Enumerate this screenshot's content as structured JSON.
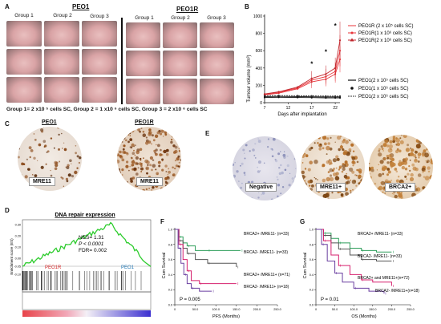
{
  "panelA": {
    "label": "A",
    "peo1_title": "PEO1",
    "peo1r_title": "PEO1R",
    "groups": [
      "Group 1",
      "Group 2",
      "Group 3"
    ],
    "caption": "Group 1= 2 x10 ⁵ cells SC, Group 2 = 1 x10 ⁶ cells SC, Group 3 = 2 x10 ⁶ cells SC"
  },
  "panelB": {
    "label": "B",
    "ylabel": "Tumour volume (mm³)",
    "xlabel": "Days after implantation",
    "legend": [
      "PEO1R (2 x 10⁵ cells SC)",
      "PEO1R(1 x 10⁶ cells SC)",
      "PEO1R(2 x 10⁶ cells SC)",
      "PEO1(2 x 10⁵ cells SC)",
      "PEO1(1 x 10⁶ cells SC)",
      "PEO1(2 x 10⁶ cells SC)"
    ],
    "sig_mark": "*"
  },
  "panelC": {
    "label": "C",
    "peo1_title": "PEO1",
    "peo1r_title": "PEO1R",
    "stain1": "MRE11",
    "stain2": "MRE11"
  },
  "panelD": {
    "label": "D",
    "title": "DNA repair expression",
    "ylabel": "Enrichment score (ES)",
    "nes": "NES= 1.31",
    "p": "P < 0.0001",
    "fdr": "FDR= 0.002",
    "left_tag": "PEO1R",
    "right_tag": "PEO1"
  },
  "panelE": {
    "label": "E",
    "neg": "Negative",
    "mre": "MRE11+",
    "brca": "BRCA2+"
  },
  "panelF": {
    "label": "F",
    "ylabel": "Cum Survival",
    "xlabel": "PFS (Months)",
    "p": "P = 0.005",
    "groups": [
      "BRCA2+ /MRE11- (n=33)",
      "BRCA2- /MRE11- (n=33)",
      "BRCA2+ /MRE11+ (n=71)",
      "BRCA2- /MRE11+ (n=18)"
    ]
  },
  "panelG": {
    "label": "G",
    "ylabel": "Cum Survival",
    "xlabel": "OS (Months)",
    "p": "P = 0.01",
    "groups": [
      "BRCA2+ /MRE11- (n=33)",
      "BRCA2- /MRE11- (n=33)",
      "BRCA2+ and MRE11+(n=72)",
      "BRCA2- /MRE11+(n=18)"
    ]
  },
  "chart_data": [
    {
      "type": "line",
      "panel": "B",
      "ylabel": "Tumour volume (mm³)",
      "xlabel": "Days after implantation",
      "x": [
        7,
        10,
        14,
        17,
        20,
        22,
        23
      ],
      "ylim": [
        0,
        1000
      ],
      "yticks": [
        0,
        200,
        400,
        600,
        800,
        1000
      ],
      "xticks": [
        7,
        12,
        17,
        22
      ],
      "series": [
        {
          "name": "PEO1R (2 x 10⁵ cells SC)",
          "color": "#e8343a",
          "values": [
            90,
            110,
            160,
            240,
            270,
            330,
            500
          ]
        },
        {
          "name": "PEO1R(1 x 10⁶ cells SC)",
          "color": "#e8343a",
          "values": [
            95,
            120,
            170,
            260,
            300,
            360,
            600
          ]
        },
        {
          "name": "PEO1R(2 x 10⁶ cells SC)",
          "color": "#c0272d",
          "values": [
            100,
            125,
            180,
            280,
            330,
            400,
            720
          ]
        },
        {
          "name": "PEO1(2 x 10⁵ cells SC)",
          "color": "#111111",
          "values": [
            60,
            62,
            60,
            58,
            55,
            55,
            55
          ]
        },
        {
          "name": "PEO1(1 x 10⁶ cells SC)",
          "color": "#111111",
          "values": [
            70,
            72,
            70,
            68,
            66,
            66,
            66
          ]
        },
        {
          "name": "PEO1(2 x 10⁶ cells SC)",
          "color": "#333333",
          "values": [
            80,
            82,
            80,
            78,
            76,
            75,
            75
          ]
        }
      ],
      "significance_x": [
        17,
        20,
        22
      ]
    },
    {
      "type": "line",
      "panel": "F",
      "ylabel": "Cum Survival",
      "xlabel": "PFS (Months)",
      "xlim": [
        0,
        250
      ],
      "ylim": [
        0,
        1
      ],
      "xticks": [
        0,
        50,
        100,
        150,
        200,
        250
      ],
      "yticks": [
        0,
        0.2,
        0.4,
        0.6,
        0.8,
        1.0
      ],
      "series": [
        {
          "name": "BRCA2+ /MRE11- (n=33)",
          "color": "#2e9e5b",
          "x": [
            0,
            10,
            20,
            30,
            50,
            80,
            130,
            160
          ],
          "values": [
            1.0,
            0.9,
            0.82,
            0.78,
            0.72,
            0.72,
            0.72,
            0.72
          ]
        },
        {
          "name": "BRCA2- /MRE11- (n=33)",
          "color": "#555555",
          "x": [
            0,
            10,
            20,
            30,
            50,
            80,
            110,
            150
          ],
          "values": [
            1.0,
            0.85,
            0.75,
            0.68,
            0.6,
            0.55,
            0.55,
            0.5
          ]
        },
        {
          "name": "BRCA2+ /MRE11+ (n=71)",
          "color": "#d6206e",
          "x": [
            0,
            10,
            20,
            30,
            40,
            60,
            100,
            150
          ],
          "values": [
            1.0,
            0.8,
            0.6,
            0.45,
            0.32,
            0.28,
            0.28,
            0.28
          ]
        },
        {
          "name": "BRCA2- /MRE11+ (n=18)",
          "color": "#6a3fa0",
          "x": [
            0,
            8,
            15,
            22,
            30,
            40,
            60,
            90
          ],
          "values": [
            1.0,
            0.75,
            0.55,
            0.4,
            0.28,
            0.22,
            0.18,
            0.18
          ]
        }
      ]
    },
    {
      "type": "line",
      "panel": "G",
      "ylabel": "Cum Survival",
      "xlabel": "OS (Months)",
      "xlim": [
        0,
        250
      ],
      "ylim": [
        0,
        1
      ],
      "xticks": [
        0,
        50,
        100,
        150,
        200,
        250
      ],
      "yticks": [
        0,
        0.2,
        0.4,
        0.6,
        0.8,
        1.0
      ],
      "series": [
        {
          "name": "BRCA2+ /MRE11- (n=33)",
          "color": "#2e9e5b",
          "x": [
            0,
            20,
            40,
            60,
            90,
            120,
            160,
            200
          ],
          "values": [
            1.0,
            0.95,
            0.88,
            0.82,
            0.75,
            0.72,
            0.7,
            0.7
          ]
        },
        {
          "name": "BRCA2- /MRE11- (n=33)",
          "color": "#555555",
          "x": [
            0,
            20,
            40,
            60,
            90,
            120,
            160,
            200
          ],
          "values": [
            1.0,
            0.92,
            0.82,
            0.74,
            0.66,
            0.6,
            0.58,
            0.58
          ]
        },
        {
          "name": "BRCA2+ and MRE11+(n=72)",
          "color": "#d6206e",
          "x": [
            0,
            20,
            40,
            60,
            90,
            120,
            150,
            200
          ],
          "values": [
            1.0,
            0.85,
            0.66,
            0.52,
            0.4,
            0.33,
            0.3,
            0.25
          ]
        },
        {
          "name": "BRCA2- /MRE11+(n=18)",
          "color": "#6a3fa0",
          "x": [
            0,
            15,
            30,
            50,
            70,
            100,
            140,
            180
          ],
          "values": [
            1.0,
            0.8,
            0.58,
            0.42,
            0.3,
            0.22,
            0.18,
            0.15
          ]
        }
      ]
    }
  ]
}
